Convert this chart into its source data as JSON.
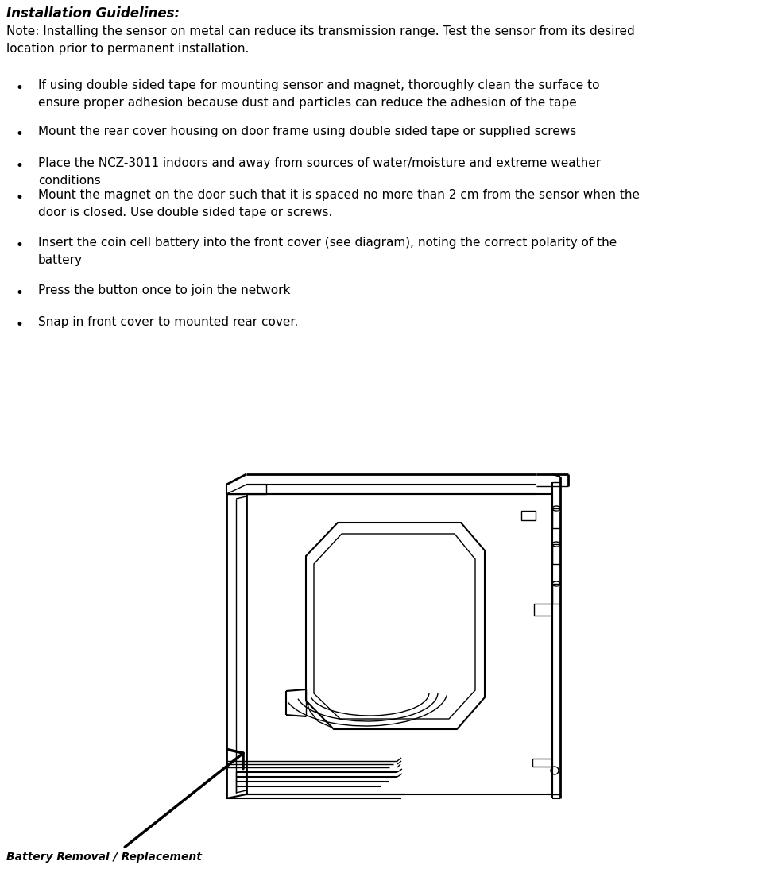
{
  "title": "Installation Guidelines:",
  "note_line1": "Note: Installing the sensor on metal can reduce its transmission range. Test the sensor from its desired",
  "note_line2": "location prior to permanent installation.",
  "bullets": [
    "If using double sided tape for mounting sensor and magnet, thoroughly clean the surface to\nensure proper adhesion because dust and particles can reduce the adhesion of the tape",
    "Mount the rear cover housing on door frame using double sided tape or supplied screws",
    "Place the NCZ-3011 indoors and away from sources of water/moisture and extreme weather\nconditions",
    "Mount the magnet on the door such that it is spaced no more than 2 cm from the sensor when the\ndoor is closed. Use double sided tape or screws.",
    "Insert the coin cell battery into the front cover (see diagram), noting the correct polarity of the\nbattery",
    "Press the button once to join the network",
    "Snap in front cover to mounted rear cover."
  ],
  "battery_label": "Battery Removal / Replacement",
  "background_color": "#ffffff",
  "text_color": "#000000"
}
